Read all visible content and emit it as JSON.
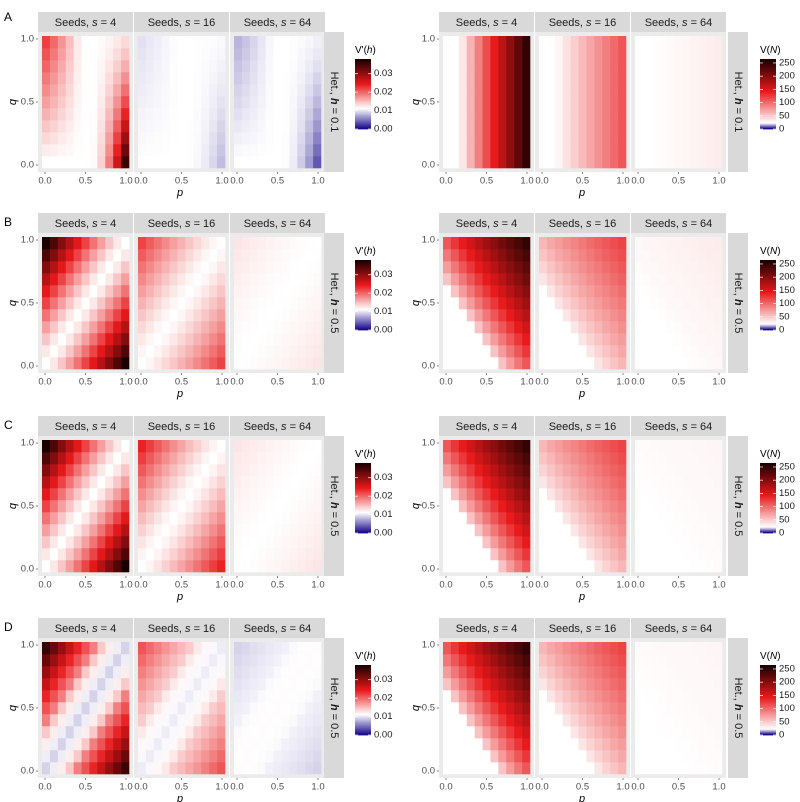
{
  "colors": {
    "strip_bg": "#d9d9d9",
    "panel_bg": "#ebebeb",
    "low": "#1a0a8c",
    "mid_low": "#ffffff",
    "high_red": "#e8191b",
    "high_dark": "#1a0000",
    "tick_text": "#4d4d4d"
  },
  "chart_data": {
    "type": "heatmap",
    "row_labels": [
      "A",
      "B",
      "C",
      "D"
    ],
    "facet_titles": [
      "Seeds, s = 4",
      "Seeds, s = 16",
      "Seeds, s = 64"
    ],
    "facet_title_prefix": "Seeds, ",
    "facet_title_var": "s",
    "facet_seeds": [
      "4",
      "16",
      "64"
    ],
    "strip_prefix": "Het., ",
    "strip_var": "h",
    "strip_values": [
      "0.1",
      "0.5",
      "0.5",
      "0.5"
    ],
    "x_label": "p",
    "y_label": "q",
    "x_ticks": [
      "0.0",
      "0.5",
      "1.0"
    ],
    "y_ticks": [
      "0.0",
      "0.5",
      "1.0"
    ],
    "grid_size": 11,
    "left_legend": {
      "title": "V'(h)",
      "title_prefix": "V'(",
      "title_var": "h",
      "title_suffix": ")",
      "breaks": [
        "0.00",
        "0.01",
        "0.02",
        "0.03"
      ],
      "range": [
        0,
        0.038
      ],
      "white_at": 0.011
    },
    "right_legend": {
      "title": "V(N)",
      "title_prefix": "V(",
      "title_var": "N",
      "title_suffix": ")",
      "breaks": [
        "0",
        "50",
        "100",
        "150",
        "200",
        "250"
      ],
      "range": [
        0,
        265
      ],
      "white_at": 20
    },
    "note": "Each heatmap is an 11x11 grid over p (x) and q (y) in [0,1]; cell values approximated from colour intensity.",
    "left_panels": [
      {
        "row": "A",
        "pattern": "het_low",
        "peak": [
          0.036,
          0.008,
          0.0035
        ]
      },
      {
        "row": "B",
        "pattern": "two_corner",
        "peak": [
          0.038,
          0.022,
          0.0125
        ]
      },
      {
        "row": "C",
        "pattern": "two_corner",
        "peak": [
          0.038,
          0.024,
          0.0125
        ]
      },
      {
        "row": "D",
        "pattern": "two_corner_neg",
        "peak": [
          0.036,
          0.021,
          0.009
        ]
      }
    ],
    "right_panels": [
      {
        "row": "A",
        "pattern": "columns",
        "peak": [
          250,
          110,
          30
        ]
      },
      {
        "row": "B",
        "pattern": "diagonal",
        "peak": [
          250,
          120,
          30
        ]
      },
      {
        "row": "C",
        "pattern": "diagonal",
        "peak": [
          250,
          120,
          25
        ]
      },
      {
        "row": "D",
        "pattern": "diagonal",
        "peak": [
          250,
          120,
          25
        ]
      }
    ]
  }
}
